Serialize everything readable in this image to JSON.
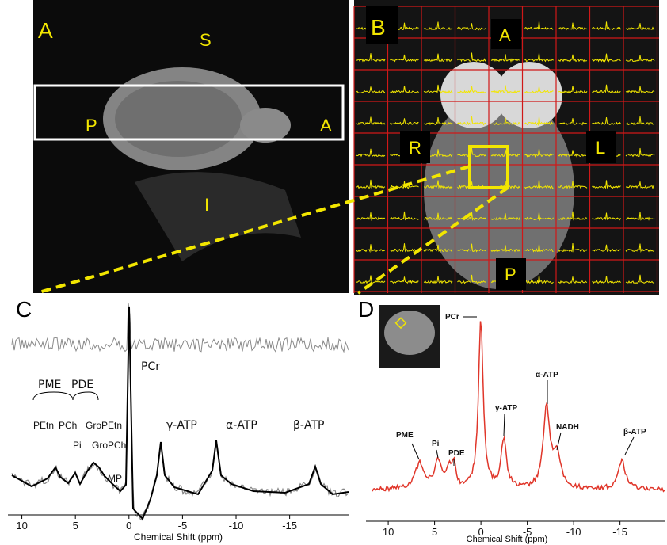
{
  "panels": {
    "a": {
      "letter": "A",
      "superior": "S",
      "posterior": "P",
      "anterior": "A",
      "inferior": "I"
    },
    "b": {
      "letter": "B",
      "anterior": "A",
      "right": "R",
      "left": "L",
      "posterior": "P"
    },
    "c": {
      "letter": "C",
      "x_label": "Chemical Shift (ppm)",
      "xlim": [
        11.3,
        -20.5
      ],
      "xticks": [
        10,
        5,
        0,
        -5,
        -10,
        -15
      ],
      "labels": {
        "pme": "PME",
        "pde": "PDE",
        "petn": "PEtn",
        "pch": "PCh",
        "pi": "Pi",
        "gropetn": "GroPEtn",
        "gropch": "GroPCh",
        "mp": "MP",
        "pcr": "PCr",
        "gamma_atp": "γ-ATP",
        "alpha_atp": "α-ATP",
        "beta_atp": "β-ATP"
      }
    },
    "d": {
      "letter": "D",
      "x_label": "Chemical Shift (ppm)",
      "xlim": [
        12.4,
        -19.9
      ],
      "xticks": [
        10,
        5,
        0,
        -5,
        -10,
        -15
      ],
      "labels": {
        "pcr": "PCr",
        "pme": "PME",
        "pi": "Pi",
        "pde": "PDE",
        "gamma_atp": "γ-ATP",
        "alpha_atp": "α-ATP",
        "nadh": "NADH",
        "beta_atp": "β-ATP"
      }
    }
  }
}
